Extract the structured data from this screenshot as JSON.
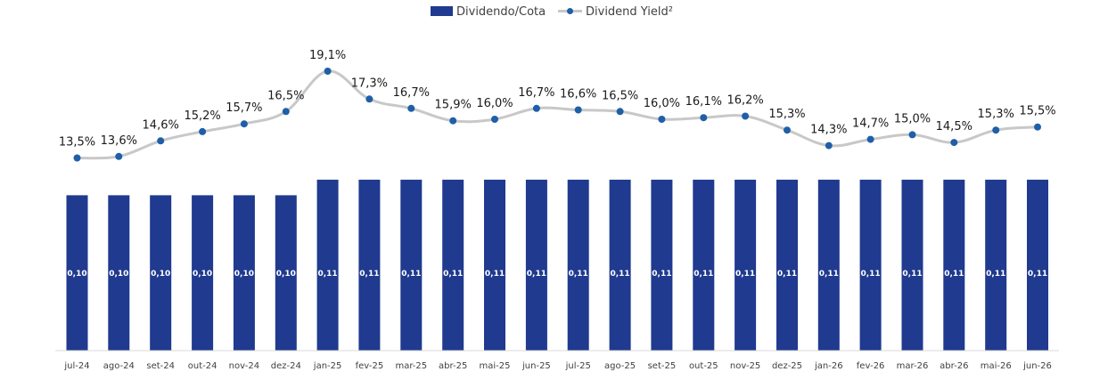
{
  "chart_data": {
    "type": "bar",
    "categories": [
      "jul-24",
      "ago-24",
      "set-24",
      "out-24",
      "nov-24",
      "dez-24",
      "jan-25",
      "fev-25",
      "mar-25",
      "abr-25",
      "mai-25",
      "jun-25",
      "jul-25",
      "ago-25",
      "set-25",
      "out-25",
      "nov-25",
      "dez-25",
      "jan-26",
      "fev-26",
      "mar-26",
      "abr-26",
      "mai-26",
      "jun-26"
    ],
    "series": [
      {
        "name": "Dividendo/Cota",
        "type": "bar",
        "color": "#1f3a8f",
        "values": [
          0.1,
          0.1,
          0.1,
          0.1,
          0.1,
          0.1,
          0.11,
          0.11,
          0.11,
          0.11,
          0.11,
          0.11,
          0.11,
          0.11,
          0.11,
          0.11,
          0.11,
          0.11,
          0.11,
          0.11,
          0.11,
          0.11,
          0.11,
          0.11
        ],
        "labels": [
          "0,10",
          "0,10",
          "0,10",
          "0,10",
          "0,10",
          "0,10",
          "0,11",
          "0,11",
          "0,11",
          "0,11",
          "0,11",
          "0,11",
          "0,11",
          "0,11",
          "0,11",
          "0,11",
          "0,11",
          "0,11",
          "0,11",
          "0,11",
          "0,11",
          "0,11",
          "0,11",
          "0,11"
        ]
      },
      {
        "name": "Dividend Yield²",
        "type": "line",
        "color": "#c8c8c8",
        "marker_color": "#1f5fa8",
        "values": [
          13.5,
          13.6,
          14.6,
          15.2,
          15.7,
          16.5,
          19.1,
          17.3,
          16.7,
          15.9,
          16.0,
          16.7,
          16.6,
          16.5,
          16.0,
          16.1,
          16.2,
          15.3,
          14.3,
          14.7,
          15.0,
          14.5,
          15.3,
          15.5
        ],
        "labels": [
          "13,5%",
          "13,6%",
          "14,6%",
          "15,2%",
          "15,7%",
          "16,5%",
          "19,1%",
          "17,3%",
          "16,7%",
          "15,9%",
          "16,0%",
          "16,7%",
          "16,6%",
          "16,5%",
          "16,0%",
          "16,1%",
          "16,2%",
          "15,3%",
          "14,3%",
          "14,7%",
          "15,0%",
          "14,5%",
          "15,3%",
          "15,5%"
        ]
      }
    ],
    "legend_position": "top-center",
    "grid": false
  }
}
